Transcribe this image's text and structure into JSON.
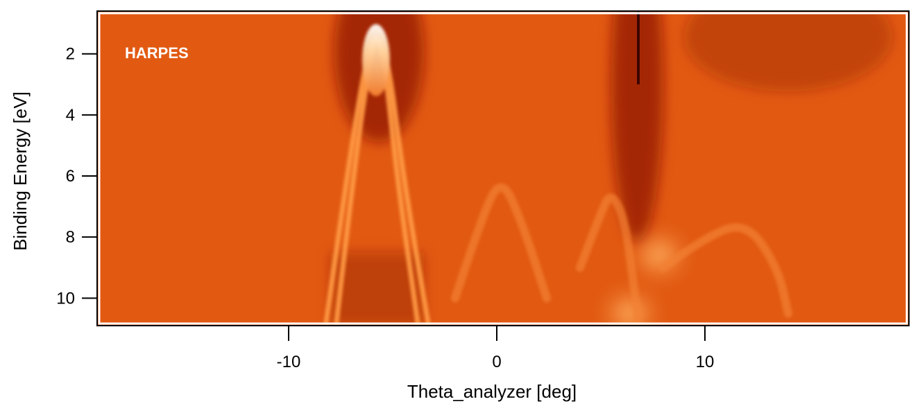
{
  "chart_data": {
    "type": "heatmap",
    "title": "",
    "annotation": "HARPES",
    "xlabel": "Theta_analyzer [deg]",
    "ylabel": "Binding Energy [eV]",
    "xlim": [
      -19.2,
      19.8
    ],
    "ylim": [
      0.6,
      10.9
    ],
    "y_inverted": true,
    "x_ticks": [
      -10,
      0,
      10
    ],
    "x_tick_labels": [
      "-10",
      "0",
      "10"
    ],
    "y_ticks": [
      2,
      4,
      6,
      8,
      10
    ],
    "y_tick_labels": [
      "2",
      "4",
      "6",
      "8",
      "10"
    ],
    "colormap": [
      "#2a0000",
      "#8a1500",
      "#c23a08",
      "#e25a12",
      "#f5802e",
      "#ffffff"
    ],
    "grid": false,
    "bands": [
      {
        "name": "",
        "apex": [
          -5.8,
          1.3
        ],
        "points": [
          [
            -8.2,
            10.8
          ],
          [
            -7.2,
            6.0
          ],
          [
            -6.3,
            2.2
          ],
          [
            -5.8,
            1.3
          ],
          [
            -5.2,
            2.2
          ],
          [
            -4.5,
            6.0
          ],
          [
            -3.3,
            10.8
          ]
        ]
      },
      {
        "name": "",
        "apex": [
          -5.8,
          1.3
        ],
        "points": [
          [
            -7.7,
            10.8
          ],
          [
            -6.9,
            6.0
          ],
          [
            -6.1,
            2.2
          ],
          [
            -5.8,
            1.3
          ],
          [
            -5.4,
            2.2
          ],
          [
            -4.8,
            6.0
          ],
          [
            -3.8,
            10.8
          ]
        ]
      },
      {
        "name": "",
        "apex": [
          0.2,
          6.0
        ],
        "points": [
          [
            -2.0,
            10.0
          ],
          [
            -0.8,
            7.5
          ],
          [
            0.2,
            6.0
          ],
          [
            1.2,
            7.5
          ],
          [
            2.4,
            10.0
          ]
        ]
      },
      {
        "name": "",
        "apex": [
          5.5,
          6.5
        ],
        "points": [
          [
            4.0,
            9.0
          ],
          [
            5.0,
            7.2
          ],
          [
            5.5,
            6.5
          ],
          [
            6.2,
            7.5
          ],
          [
            6.8,
            10.8
          ]
        ]
      },
      {
        "name": "",
        "apex": [
          12.0,
          7.5
        ],
        "points": [
          [
            8.0,
            9.0
          ],
          [
            10.0,
            8.0
          ],
          [
            12.0,
            7.5
          ],
          [
            13.5,
            9.0
          ],
          [
            14.0,
            10.5
          ]
        ]
      }
    ],
    "dark_regions": [
      {
        "x_range": [
          -7.8,
          -3.5
        ],
        "y_range": [
          0.6,
          4.5
        ]
      },
      {
        "x_range": [
          5.5,
          8.0
        ],
        "y_range": [
          0.6,
          7.5
        ]
      },
      {
        "x_range": [
          9.0,
          19.0
        ],
        "y_range": [
          0.6,
          3.0
        ]
      }
    ],
    "bright_spots": [
      {
        "x": 6.4,
        "y": 10.5
      },
      {
        "x": 7.8,
        "y": 8.6
      }
    ]
  }
}
